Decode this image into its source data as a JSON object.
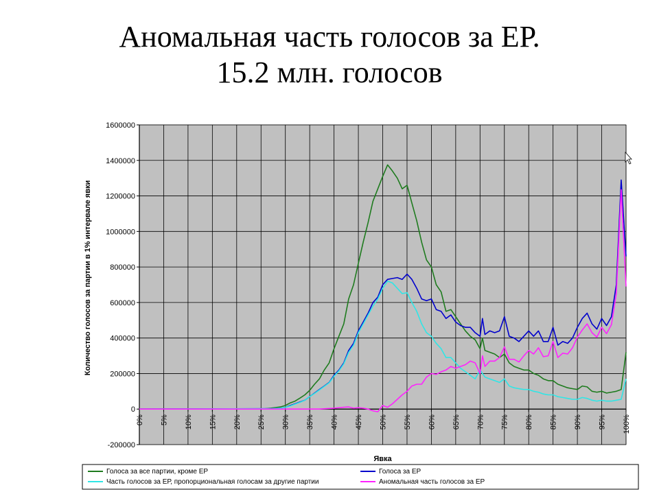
{
  "slide": {
    "title_line1": "Аномальная часть голосов за ЕР.",
    "title_line2": "15.2 млн. голосов"
  },
  "chart_data": {
    "type": "line",
    "xlabel": "Явка",
    "ylabel": "Количество голосов за партии в 1% интервале явки",
    "xlim": [
      0,
      100
    ],
    "ylim": [
      -200000,
      1600000
    ],
    "y_ticks": [
      -200000,
      0,
      200000,
      400000,
      600000,
      800000,
      1000000,
      1200000,
      1400000,
      1600000
    ],
    "x_ticks": [
      "0%",
      "5%",
      "10%",
      "15%",
      "20%",
      "25%",
      "30%",
      "35%",
      "40%",
      "45%",
      "50%",
      "55%",
      "60%",
      "65%",
      "70%",
      "75%",
      "80%",
      "85%",
      "90%",
      "95%",
      "100%"
    ],
    "grid": true,
    "legend_position": "bottom",
    "series": [
      {
        "name": "Голоса за все партии, кроме ЕР",
        "color": "#1e7b1e",
        "points": [
          [
            0,
            0
          ],
          [
            25,
            0
          ],
          [
            27,
            5000
          ],
          [
            29,
            12000
          ],
          [
            30,
            20000
          ],
          [
            31,
            35000
          ],
          [
            32,
            45000
          ],
          [
            33,
            62000
          ],
          [
            34,
            80000
          ],
          [
            35,
            105000
          ],
          [
            36,
            140000
          ],
          [
            37,
            170000
          ],
          [
            38,
            220000
          ],
          [
            39,
            260000
          ],
          [
            40,
            340000
          ],
          [
            41,
            410000
          ],
          [
            42,
            480000
          ],
          [
            43,
            620000
          ],
          [
            44,
            700000
          ],
          [
            45,
            820000
          ],
          [
            46,
            940000
          ],
          [
            47,
            1050000
          ],
          [
            48,
            1170000
          ],
          [
            49,
            1240000
          ],
          [
            50,
            1310000
          ],
          [
            51,
            1375000
          ],
          [
            52,
            1340000
          ],
          [
            53,
            1300000
          ],
          [
            54,
            1240000
          ],
          [
            55,
            1260000
          ],
          [
            56,
            1160000
          ],
          [
            57,
            1060000
          ],
          [
            58,
            940000
          ],
          [
            59,
            840000
          ],
          [
            60,
            800000
          ],
          [
            61,
            700000
          ],
          [
            62,
            660000
          ],
          [
            63,
            550000
          ],
          [
            64,
            560000
          ],
          [
            65,
            520000
          ],
          [
            66,
            480000
          ],
          [
            67,
            440000
          ],
          [
            68,
            410000
          ],
          [
            69,
            390000
          ],
          [
            70,
            340000
          ],
          [
            70.5,
            400000
          ],
          [
            71,
            330000
          ],
          [
            72,
            320000
          ],
          [
            73,
            310000
          ],
          [
            74,
            290000
          ],
          [
            75,
            310000
          ],
          [
            76,
            260000
          ],
          [
            77,
            240000
          ],
          [
            78,
            230000
          ],
          [
            79,
            220000
          ],
          [
            80,
            220000
          ],
          [
            81,
            200000
          ],
          [
            82,
            190000
          ],
          [
            83,
            170000
          ],
          [
            84,
            160000
          ],
          [
            85,
            160000
          ],
          [
            86,
            140000
          ],
          [
            87,
            130000
          ],
          [
            88,
            120000
          ],
          [
            89,
            115000
          ],
          [
            90,
            110000
          ],
          [
            91,
            130000
          ],
          [
            92,
            125000
          ],
          [
            93,
            100000
          ],
          [
            94,
            95000
          ],
          [
            95,
            100000
          ],
          [
            96,
            90000
          ],
          [
            97,
            95000
          ],
          [
            98,
            100000
          ],
          [
            99,
            110000
          ],
          [
            100,
            320000
          ]
        ]
      },
      {
        "name": "Голоса за ЕР",
        "color": "#0000cc",
        "points": [
          [
            0,
            0
          ],
          [
            27,
            2000
          ],
          [
            29,
            5000
          ],
          [
            30,
            10000
          ],
          [
            31,
            20000
          ],
          [
            32,
            30000
          ],
          [
            33,
            40000
          ],
          [
            34,
            50000
          ],
          [
            35,
            70000
          ],
          [
            36,
            90000
          ],
          [
            37,
            110000
          ],
          [
            38,
            130000
          ],
          [
            39,
            150000
          ],
          [
            40,
            190000
          ],
          [
            41,
            220000
          ],
          [
            42,
            260000
          ],
          [
            43,
            330000
          ],
          [
            44,
            370000
          ],
          [
            45,
            440000
          ],
          [
            46,
            490000
          ],
          [
            47,
            540000
          ],
          [
            48,
            600000
          ],
          [
            49,
            630000
          ],
          [
            50,
            700000
          ],
          [
            51,
            730000
          ],
          [
            52,
            735000
          ],
          [
            53,
            740000
          ],
          [
            54,
            730000
          ],
          [
            55,
            760000
          ],
          [
            56,
            730000
          ],
          [
            57,
            680000
          ],
          [
            58,
            620000
          ],
          [
            59,
            610000
          ],
          [
            60,
            620000
          ],
          [
            61,
            560000
          ],
          [
            62,
            550000
          ],
          [
            63,
            510000
          ],
          [
            64,
            530000
          ],
          [
            65,
            490000
          ],
          [
            66,
            470000
          ],
          [
            67,
            460000
          ],
          [
            68,
            460000
          ],
          [
            69,
            430000
          ],
          [
            70,
            410000
          ],
          [
            70.5,
            510000
          ],
          [
            71,
            420000
          ],
          [
            72,
            440000
          ],
          [
            73,
            430000
          ],
          [
            74,
            440000
          ],
          [
            75,
            520000
          ],
          [
            76,
            410000
          ],
          [
            77,
            400000
          ],
          [
            78,
            380000
          ],
          [
            79,
            410000
          ],
          [
            80,
            440000
          ],
          [
            81,
            410000
          ],
          [
            82,
            440000
          ],
          [
            83,
            380000
          ],
          [
            84,
            380000
          ],
          [
            85,
            460000
          ],
          [
            86,
            360000
          ],
          [
            87,
            380000
          ],
          [
            88,
            370000
          ],
          [
            89,
            400000
          ],
          [
            90,
            460000
          ],
          [
            91,
            510000
          ],
          [
            92,
            540000
          ],
          [
            93,
            480000
          ],
          [
            94,
            450000
          ],
          [
            95,
            510000
          ],
          [
            96,
            470000
          ],
          [
            97,
            520000
          ],
          [
            98,
            700000
          ],
          [
            99,
            1290000
          ],
          [
            100,
            860000
          ]
        ]
      },
      {
        "name": "Часть голосов за ЕР, пропорциональная голосам за другие партии",
        "color": "#2ee6e6",
        "points": [
          [
            0,
            0
          ],
          [
            27,
            2000
          ],
          [
            29,
            5000
          ],
          [
            30,
            10000
          ],
          [
            31,
            18000
          ],
          [
            32,
            28000
          ],
          [
            33,
            38000
          ],
          [
            34,
            50000
          ],
          [
            35,
            70000
          ],
          [
            36,
            88000
          ],
          [
            37,
            108000
          ],
          [
            38,
            128000
          ],
          [
            39,
            148000
          ],
          [
            40,
            185000
          ],
          [
            41,
            215000
          ],
          [
            42,
            255000
          ],
          [
            43,
            320000
          ],
          [
            44,
            360000
          ],
          [
            45,
            430000
          ],
          [
            46,
            480000
          ],
          [
            47,
            530000
          ],
          [
            48,
            580000
          ],
          [
            49,
            620000
          ],
          [
            50,
            680000
          ],
          [
            51,
            720000
          ],
          [
            52,
            710000
          ],
          [
            53,
            680000
          ],
          [
            54,
            650000
          ],
          [
            55,
            655000
          ],
          [
            56,
            600000
          ],
          [
            57,
            550000
          ],
          [
            58,
            480000
          ],
          [
            59,
            430000
          ],
          [
            60,
            410000
          ],
          [
            61,
            370000
          ],
          [
            62,
            340000
          ],
          [
            63,
            290000
          ],
          [
            64,
            290000
          ],
          [
            65,
            260000
          ],
          [
            66,
            230000
          ],
          [
            67,
            210000
          ],
          [
            68,
            190000
          ],
          [
            69,
            170000
          ],
          [
            70,
            220000
          ],
          [
            71,
            180000
          ],
          [
            72,
            170000
          ],
          [
            73,
            160000
          ],
          [
            74,
            150000
          ],
          [
            75,
            170000
          ],
          [
            76,
            130000
          ],
          [
            77,
            120000
          ],
          [
            78,
            115000
          ],
          [
            79,
            110000
          ],
          [
            80,
            110000
          ],
          [
            81,
            100000
          ],
          [
            82,
            95000
          ],
          [
            83,
            85000
          ],
          [
            84,
            80000
          ],
          [
            85,
            80000
          ],
          [
            86,
            70000
          ],
          [
            87,
            65000
          ],
          [
            88,
            60000
          ],
          [
            89,
            55000
          ],
          [
            90,
            55000
          ],
          [
            91,
            65000
          ],
          [
            92,
            60000
          ],
          [
            93,
            50000
          ],
          [
            94,
            45000
          ],
          [
            95,
            50000
          ],
          [
            96,
            45000
          ],
          [
            97,
            45000
          ],
          [
            98,
            50000
          ],
          [
            99,
            55000
          ],
          [
            100,
            170000
          ]
        ]
      },
      {
        "name": "Аномальная часть голосов за ЕР",
        "color": "#ff22ff",
        "points": [
          [
            0,
            0
          ],
          [
            37,
            0
          ],
          [
            40,
            5000
          ],
          [
            42,
            10000
          ],
          [
            43,
            12000
          ],
          [
            44,
            5000
          ],
          [
            45,
            8000
          ],
          [
            46,
            5000
          ],
          [
            47,
            0
          ],
          [
            48,
            -10000
          ],
          [
            49,
            -15000
          ],
          [
            50,
            20000
          ],
          [
            51,
            10000
          ],
          [
            52,
            30000
          ],
          [
            53,
            55000
          ],
          [
            54,
            80000
          ],
          [
            55,
            100000
          ],
          [
            56,
            130000
          ],
          [
            57,
            140000
          ],
          [
            58,
            140000
          ],
          [
            59,
            180000
          ],
          [
            60,
            200000
          ],
          [
            61,
            195000
          ],
          [
            62,
            210000
          ],
          [
            63,
            220000
          ],
          [
            64,
            240000
          ],
          [
            65,
            230000
          ],
          [
            66,
            240000
          ],
          [
            67,
            250000
          ],
          [
            68,
            270000
          ],
          [
            69,
            260000
          ],
          [
            70,
            200000
          ],
          [
            70.5,
            300000
          ],
          [
            71,
            240000
          ],
          [
            72,
            270000
          ],
          [
            73,
            270000
          ],
          [
            74,
            290000
          ],
          [
            75,
            350000
          ],
          [
            76,
            280000
          ],
          [
            77,
            280000
          ],
          [
            78,
            265000
          ],
          [
            79,
            300000
          ],
          [
            80,
            330000
          ],
          [
            81,
            310000
          ],
          [
            82,
            345000
          ],
          [
            83,
            295000
          ],
          [
            84,
            300000
          ],
          [
            85,
            380000
          ],
          [
            86,
            290000
          ],
          [
            87,
            315000
          ],
          [
            88,
            310000
          ],
          [
            89,
            345000
          ],
          [
            90,
            405000
          ],
          [
            91,
            445000
          ],
          [
            92,
            480000
          ],
          [
            93,
            430000
          ],
          [
            94,
            405000
          ],
          [
            95,
            460000
          ],
          [
            96,
            425000
          ],
          [
            97,
            475000
          ],
          [
            98,
            650000
          ],
          [
            99,
            1235000
          ],
          [
            100,
            690000
          ]
        ]
      }
    ]
  }
}
